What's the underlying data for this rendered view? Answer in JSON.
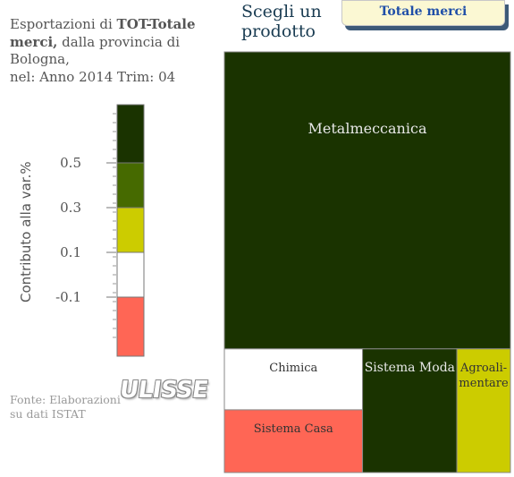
{
  "header": {
    "title_prefix": "Esportazioni di ",
    "title_bold": "TOT-Totale merci,",
    "title_suffix": " dalla provincia di Bologna,",
    "title_period": "nel: Anno 2014 Trim: 04",
    "prompt": "Scegli un prodotto",
    "product_button": "Totale merci"
  },
  "footer": {
    "source": "Fonte: Elaborazioni su dati ISTAT",
    "logo_text": "ULISSE"
  },
  "colors": {
    "dark_green": "#1a3300",
    "mid_green": "#466a00",
    "yellow": "#cccc00",
    "white": "#ffffff",
    "red": "#ff6655"
  },
  "chart_data": {
    "type": "treemap",
    "title": "Esportazioni di TOT-Totale merci, dalla provincia di Bologna, nel: Anno 2014 Trim: 04",
    "color_scale": {
      "label": "Contributo alla var.%",
      "ticks": [
        "0.5",
        "0.3",
        "0.1",
        "-0.1"
      ],
      "tick_values": [
        0.5,
        0.3,
        0.1,
        -0.1
      ],
      "bands": [
        {
          "from": 0.5,
          "to": null,
          "color": "#1a3300"
        },
        {
          "from": 0.3,
          "to": 0.5,
          "color": "#466a00"
        },
        {
          "from": 0.1,
          "to": 0.3,
          "color": "#cccc00"
        },
        {
          "from": -0.1,
          "to": 0.1,
          "color": "#ffffff"
        },
        {
          "from": null,
          "to": -0.1,
          "color": "#ff6655"
        }
      ]
    },
    "items": [
      {
        "name": "Metalmeccanica",
        "share": 0.706,
        "color": "#1a3300"
      },
      {
        "name": "Chimica",
        "share": 0.07,
        "color": "#ffffff"
      },
      {
        "name": "Sistema Casa",
        "share": 0.072,
        "color": "#ff6655"
      },
      {
        "name": "Sistema Moda",
        "share": 0.097,
        "color": "#1a3300"
      },
      {
        "name": "Agroali-mentare",
        "share": 0.055,
        "color": "#cccc00"
      }
    ]
  }
}
